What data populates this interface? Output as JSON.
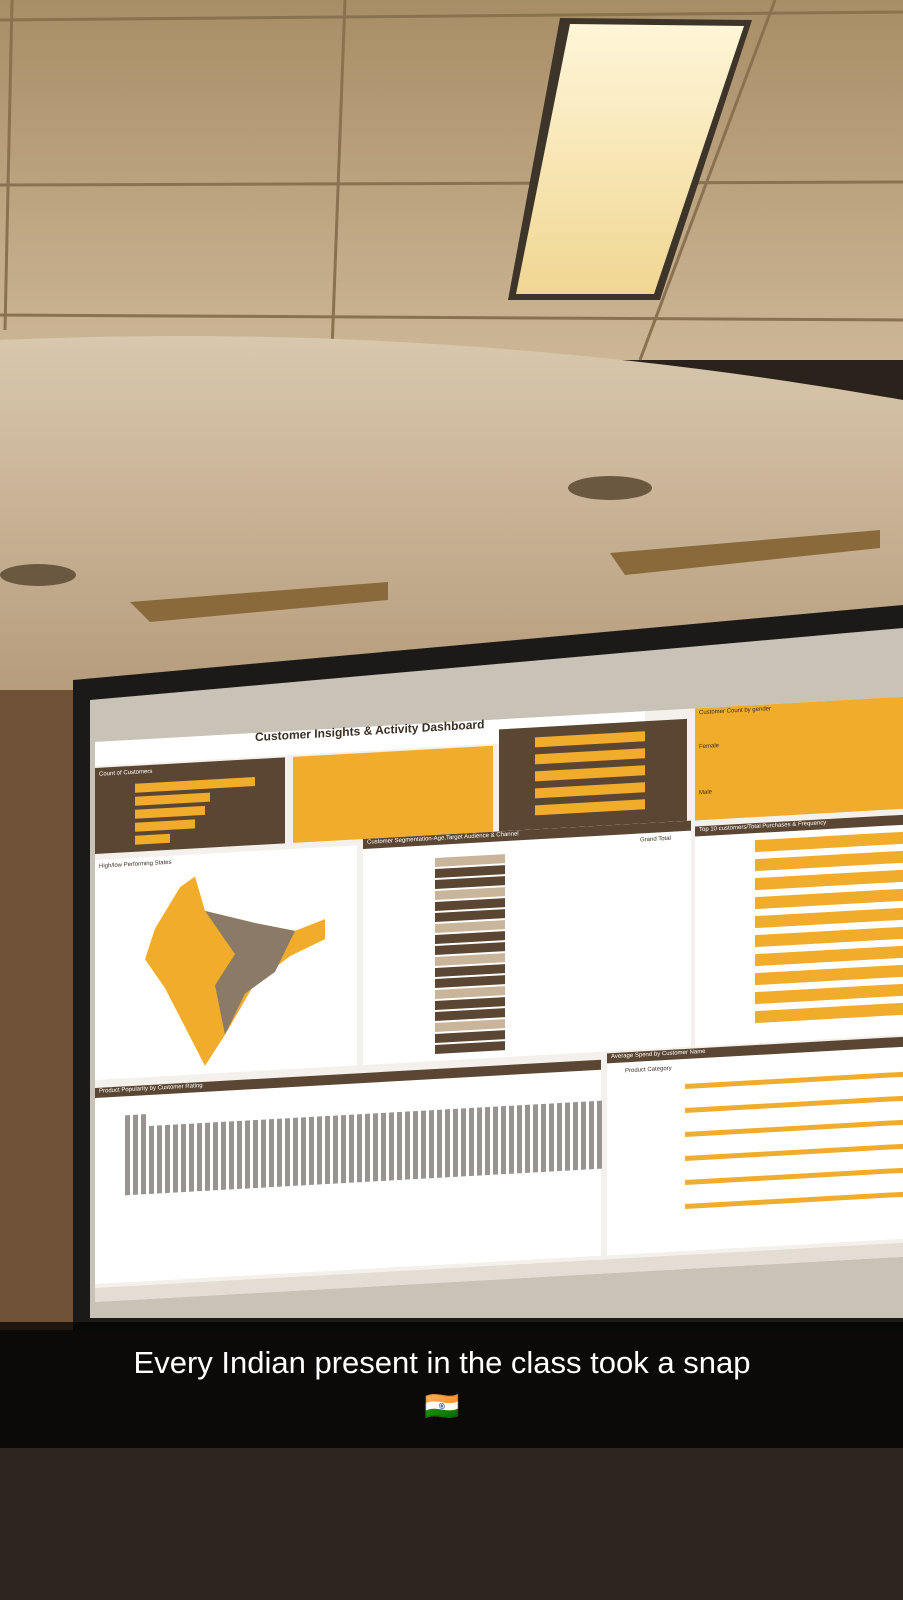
{
  "caption": {
    "text": "Every Indian present in the class took a snap",
    "emoji": "🇮🇳"
  },
  "dashboard": {
    "title": "Customer Insights & Activity Dashboard",
    "panels": {
      "count": "Count of Customers",
      "states": "High/low Performing States",
      "segmentation": "Customer Segmentation-Age,Target Audience & Channel",
      "gender": "Customer Count by gender",
      "female": "Female",
      "male": "Male",
      "top10": "Top 10 customers/Total Purchases & Frequency",
      "popularity": "Product Popularity by Customer Rating",
      "spend": "Average Spend by Customer Name",
      "category": "Product Category",
      "total": "Grand Total"
    }
  }
}
